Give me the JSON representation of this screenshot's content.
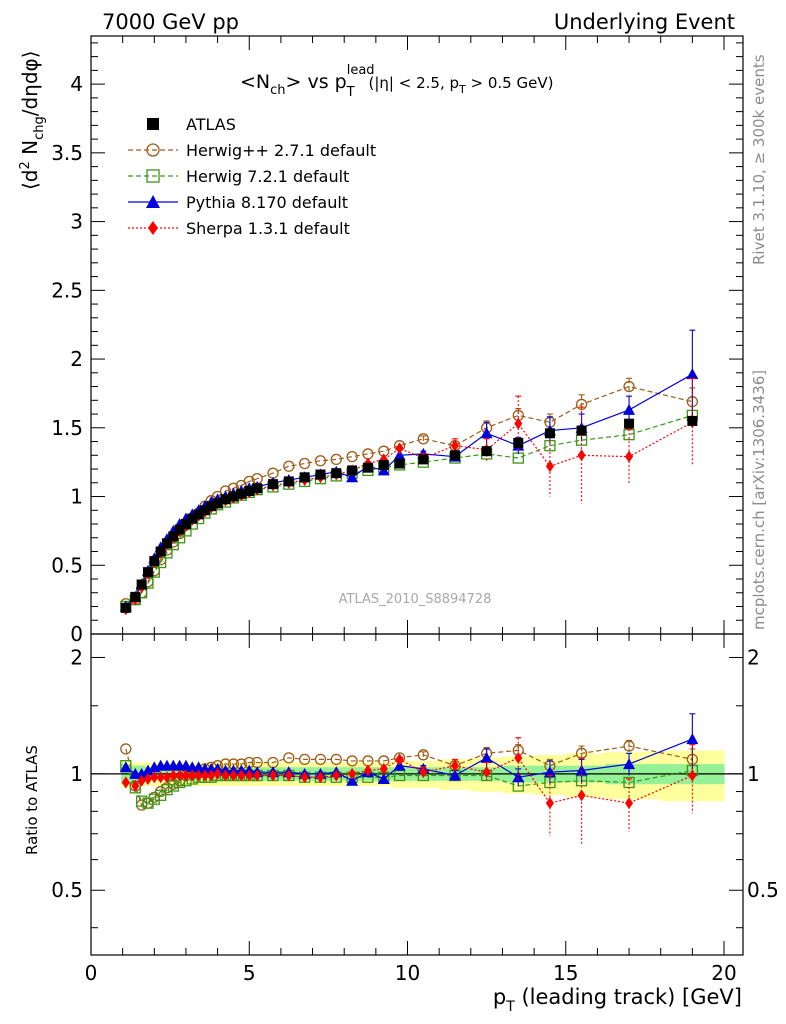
{
  "header": {
    "left": "7000 GeV pp",
    "right": "Underlying Event"
  },
  "side_text": {
    "rivet": "Rivet 3.1.10, ≥ 300k events",
    "mcplots": "mcplots.cern.ch [arXiv:1306.3436]"
  },
  "watermark": "ATLAS_2010_S8894728",
  "title": {
    "main": "<N",
    "sub_ch": "ch",
    "vs": "> vs p",
    "sup_lead": "lead",
    "sub_T": "T",
    "cuts": "(|η| < 2.5, p",
    "cuts_sub_T": "T",
    "cuts_end": " > 0.5 GeV)"
  },
  "ylabel_top": {
    "part1": "⟨d",
    "sup2": "2",
    "part2": " N",
    "sub_chg": "chg",
    "part3": "/dηdφ⟩"
  },
  "ylabel_bottom": "Ratio to ATLAS",
  "xlabel": {
    "p": "p",
    "sub_T": "T",
    "rest": " (leading track) [GeV]"
  },
  "legend": [
    {
      "label": "ATLAS",
      "color": "#000000",
      "marker": "filled-square",
      "line": "none"
    },
    {
      "label": "Herwig++ 2.7.1 default",
      "color": "#a05a14",
      "marker": "open-circle",
      "line": "dashed"
    },
    {
      "label": "Herwig 7.2.1 default",
      "color": "#3c9614",
      "marker": "open-square",
      "line": "dashed"
    },
    {
      "label": "Pythia 8.170 default",
      "color": "#0000dc",
      "marker": "filled-triangle",
      "line": "solid"
    },
    {
      "label": "Sherpa 1.3.1 default",
      "color": "#ff0000",
      "marker": "filled-diamond",
      "line": "dotted"
    }
  ],
  "chart_data": [
    {
      "type": "scatter",
      "panel": "main",
      "x": [
        1.1,
        1.4,
        1.6,
        1.8,
        2.0,
        2.2,
        2.4,
        2.6,
        2.8,
        3.0,
        3.2,
        3.4,
        3.6,
        3.8,
        4.0,
        4.25,
        4.5,
        4.75,
        5.0,
        5.25,
        5.75,
        6.25,
        6.75,
        7.25,
        7.75,
        8.25,
        8.75,
        9.25,
        9.75,
        10.5,
        11.5,
        12.5,
        13.5,
        14.5,
        15.5,
        17.0,
        19.0
      ],
      "xlim": [
        0,
        20.6
      ],
      "ylim": [
        0,
        4.35
      ],
      "xticks": [
        0,
        5,
        10,
        15,
        20
      ],
      "yticks": [
        0,
        0.5,
        1,
        1.5,
        2,
        2.5,
        3,
        3.5,
        4
      ],
      "ytick_labels": [
        "0",
        "0.5",
        "1",
        "1.5",
        "2",
        "2.5",
        "3",
        "3.5",
        "4"
      ],
      "series": [
        {
          "name": "ATLAS",
          "values": [
            0.19,
            0.27,
            0.36,
            0.45,
            0.53,
            0.6,
            0.66,
            0.71,
            0.76,
            0.8,
            0.84,
            0.87,
            0.9,
            0.93,
            0.95,
            0.98,
            1.0,
            1.02,
            1.04,
            1.06,
            1.09,
            1.11,
            1.14,
            1.16,
            1.17,
            1.19,
            1.21,
            1.23,
            1.24,
            1.27,
            1.3,
            1.33,
            1.39,
            1.46,
            1.48,
            1.53,
            1.55
          ]
        },
        {
          "name": "Herwig++ 2.7.1 default",
          "values": [
            0.22,
            0.25,
            0.3,
            0.38,
            0.46,
            0.54,
            0.61,
            0.67,
            0.73,
            0.79,
            0.84,
            0.88,
            0.93,
            0.97,
            1.0,
            1.04,
            1.06,
            1.08,
            1.11,
            1.13,
            1.17,
            1.22,
            1.24,
            1.26,
            1.27,
            1.29,
            1.31,
            1.33,
            1.37,
            1.42,
            1.37,
            1.5,
            1.59,
            1.54,
            1.67,
            1.8,
            1.69
          ]
        },
        {
          "name": "Herwig 7.2.1 default",
          "values": [
            0.2,
            0.25,
            0.3,
            0.37,
            0.45,
            0.52,
            0.59,
            0.65,
            0.7,
            0.75,
            0.8,
            0.84,
            0.88,
            0.91,
            0.94,
            0.96,
            0.99,
            1.01,
            1.03,
            1.05,
            1.07,
            1.09,
            1.11,
            1.13,
            1.15,
            1.17,
            1.19,
            1.21,
            1.23,
            1.25,
            1.28,
            1.31,
            1.28,
            1.37,
            1.41,
            1.45,
            1.59
          ]
        },
        {
          "name": "Pythia 8.170 default",
          "values": [
            0.2,
            0.27,
            0.36,
            0.46,
            0.55,
            0.63,
            0.69,
            0.75,
            0.8,
            0.84,
            0.87,
            0.9,
            0.93,
            0.96,
            0.98,
            1.0,
            1.02,
            1.04,
            1.06,
            1.07,
            1.1,
            1.12,
            1.14,
            1.16,
            1.18,
            1.14,
            1.22,
            1.19,
            1.3,
            1.31,
            1.29,
            1.46,
            1.37,
            1.48,
            1.5,
            1.63,
            1.89
          ]
        },
        {
          "name": "Sherpa 1.3.1 default",
          "values": [
            0.18,
            0.25,
            0.34,
            0.44,
            0.52,
            0.59,
            0.65,
            0.7,
            0.75,
            0.79,
            0.83,
            0.86,
            0.89,
            0.92,
            0.95,
            0.97,
            0.99,
            1.01,
            1.03,
            1.05,
            1.08,
            1.1,
            1.12,
            1.14,
            1.16,
            1.19,
            1.24,
            1.27,
            1.35,
            1.28,
            1.37,
            1.34,
            1.53,
            1.22,
            1.3,
            1.29,
            1.54
          ]
        }
      ],
      "errors": {
        "Herwig++ 2.7.1 default": [
          0,
          0,
          0,
          0,
          0,
          0,
          0,
          0,
          0,
          0,
          0,
          0,
          0,
          0,
          0,
          0,
          0,
          0,
          0,
          0,
          0,
          0,
          0,
          0,
          0,
          0,
          0,
          0,
          0,
          0.02,
          0.03,
          0.05,
          0.05,
          0.06,
          0.07,
          0.06,
          0.1
        ],
        "Pythia 8.170 default": [
          0,
          0,
          0,
          0,
          0,
          0,
          0,
          0,
          0,
          0,
          0,
          0,
          0,
          0,
          0,
          0,
          0,
          0,
          0,
          0,
          0,
          0,
          0,
          0,
          0,
          0,
          0,
          0,
          0,
          0.02,
          0.03,
          0.08,
          0.06,
          0.1,
          0.1,
          0.1,
          0.32
        ],
        "Sherpa 1.3.1 default": [
          0,
          0,
          0,
          0,
          0,
          0,
          0,
          0,
          0,
          0,
          0,
          0,
          0,
          0,
          0,
          0,
          0,
          0,
          0,
          0,
          0,
          0,
          0,
          0,
          0,
          0,
          0,
          0,
          0,
          0.03,
          0.05,
          0.08,
          0.2,
          0.22,
          0.35,
          0.2,
          0.32
        ]
      }
    },
    {
      "type": "scatter",
      "panel": "ratio",
      "x": [
        1.1,
        1.4,
        1.6,
        1.8,
        2.0,
        2.2,
        2.4,
        2.6,
        2.8,
        3.0,
        3.2,
        3.4,
        3.6,
        3.8,
        4.0,
        4.25,
        4.5,
        4.75,
        5.0,
        5.25,
        5.75,
        6.25,
        6.75,
        7.25,
        7.75,
        8.25,
        8.75,
        9.25,
        9.75,
        10.5,
        11.5,
        12.5,
        13.5,
        14.5,
        15.5,
        17.0,
        19.0
      ],
      "xlim": [
        0,
        20.6
      ],
      "ylim": [
        0.34,
        2.3
      ],
      "log_y": true,
      "yticks": [
        0.5,
        1,
        2
      ],
      "ytick_labels": [
        "0.5",
        "1",
        "2"
      ],
      "reference": 1,
      "band_inner": [
        0.06,
        0.05,
        0.05,
        0.04,
        0.04,
        0.04,
        0.04,
        0.04,
        0.04,
        0.04,
        0.04,
        0.04,
        0.04,
        0.04,
        0.04,
        0.04,
        0.04,
        0.04,
        0.04,
        0.04,
        0.04,
        0.04,
        0.04,
        0.04,
        0.04,
        0.04,
        0.04,
        0.04,
        0.04,
        0.04,
        0.04,
        0.04,
        0.05,
        0.05,
        0.05,
        0.06,
        0.06
      ],
      "band_outer": [
        0.08,
        0.07,
        0.07,
        0.07,
        0.07,
        0.07,
        0.07,
        0.07,
        0.07,
        0.07,
        0.07,
        0.07,
        0.07,
        0.07,
        0.07,
        0.07,
        0.07,
        0.07,
        0.07,
        0.07,
        0.07,
        0.07,
        0.07,
        0.07,
        0.07,
        0.07,
        0.07,
        0.07,
        0.08,
        0.08,
        0.09,
        0.1,
        0.11,
        0.12,
        0.13,
        0.14,
        0.15
      ],
      "series": [
        {
          "name": "Herwig++ 2.7.1 default",
          "values": [
            1.16,
            0.93,
            0.83,
            0.84,
            0.87,
            0.9,
            0.92,
            0.94,
            0.96,
            0.99,
            1.0,
            1.01,
            1.03,
            1.04,
            1.05,
            1.06,
            1.06,
            1.06,
            1.07,
            1.07,
            1.07,
            1.1,
            1.09,
            1.09,
            1.09,
            1.08,
            1.08,
            1.08,
            1.1,
            1.12,
            1.05,
            1.13,
            1.15,
            1.05,
            1.13,
            1.18,
            1.09
          ]
        },
        {
          "name": "Herwig 7.2.1 default",
          "values": [
            1.05,
            0.92,
            0.85,
            0.84,
            0.86,
            0.88,
            0.91,
            0.93,
            0.95,
            0.96,
            0.97,
            0.98,
            0.98,
            0.98,
            0.99,
            0.99,
            0.99,
            0.99,
            0.99,
            0.99,
            0.99,
            0.99,
            0.98,
            0.98,
            0.98,
            0.98,
            0.98,
            0.98,
            0.99,
            0.99,
            0.99,
            0.99,
            0.93,
            0.95,
            0.96,
            0.95,
            1.02
          ]
        },
        {
          "name": "Pythia 8.170 default",
          "values": [
            1.04,
            1.0,
            1.0,
            1.02,
            1.04,
            1.05,
            1.05,
            1.05,
            1.05,
            1.05,
            1.04,
            1.04,
            1.03,
            1.03,
            1.03,
            1.02,
            1.02,
            1.02,
            1.02,
            1.01,
            1.01,
            1.01,
            1.0,
            1.0,
            1.01,
            0.96,
            1.01,
            0.97,
            1.05,
            1.03,
            0.99,
            1.1,
            0.98,
            1.01,
            1.02,
            1.06,
            1.23
          ]
        },
        {
          "name": "Sherpa 1.3.1 default",
          "values": [
            0.95,
            0.93,
            0.96,
            0.97,
            0.98,
            0.98,
            0.98,
            0.99,
            0.99,
            0.99,
            0.99,
            0.99,
            0.99,
            0.99,
            1.0,
            0.99,
            0.99,
            0.99,
            0.99,
            0.99,
            0.99,
            0.99,
            0.98,
            0.98,
            0.99,
            1.0,
            1.02,
            1.03,
            1.09,
            1.01,
            1.05,
            1.01,
            1.1,
            0.84,
            0.88,
            0.84,
            0.99
          ]
        }
      ],
      "errors": {
        "Herwig++ 2.7.1 default": [
          0,
          0,
          0,
          0,
          0,
          0,
          0,
          0,
          0,
          0,
          0,
          0,
          0,
          0,
          0,
          0,
          0,
          0,
          0,
          0,
          0,
          0,
          0,
          0,
          0,
          0,
          0,
          0,
          0,
          0.02,
          0.03,
          0.04,
          0.04,
          0.04,
          0.05,
          0.04,
          0.07
        ],
        "Pythia 8.170 default": [
          0,
          0,
          0,
          0,
          0,
          0,
          0,
          0,
          0,
          0,
          0,
          0,
          0,
          0,
          0,
          0,
          0,
          0,
          0,
          0,
          0,
          0,
          0,
          0,
          0,
          0,
          0,
          0,
          0,
          0.02,
          0.03,
          0.06,
          0.05,
          0.07,
          0.07,
          0.07,
          0.2
        ],
        "Sherpa 1.3.1 default": [
          0,
          0,
          0,
          0,
          0,
          0,
          0,
          0,
          0,
          0,
          0,
          0,
          0,
          0,
          0,
          0,
          0,
          0,
          0,
          0,
          0,
          0,
          0,
          0,
          0,
          0,
          0,
          0,
          0,
          0.03,
          0.04,
          0.06,
          0.14,
          0.15,
          0.22,
          0.13,
          0.2
        ]
      }
    }
  ]
}
